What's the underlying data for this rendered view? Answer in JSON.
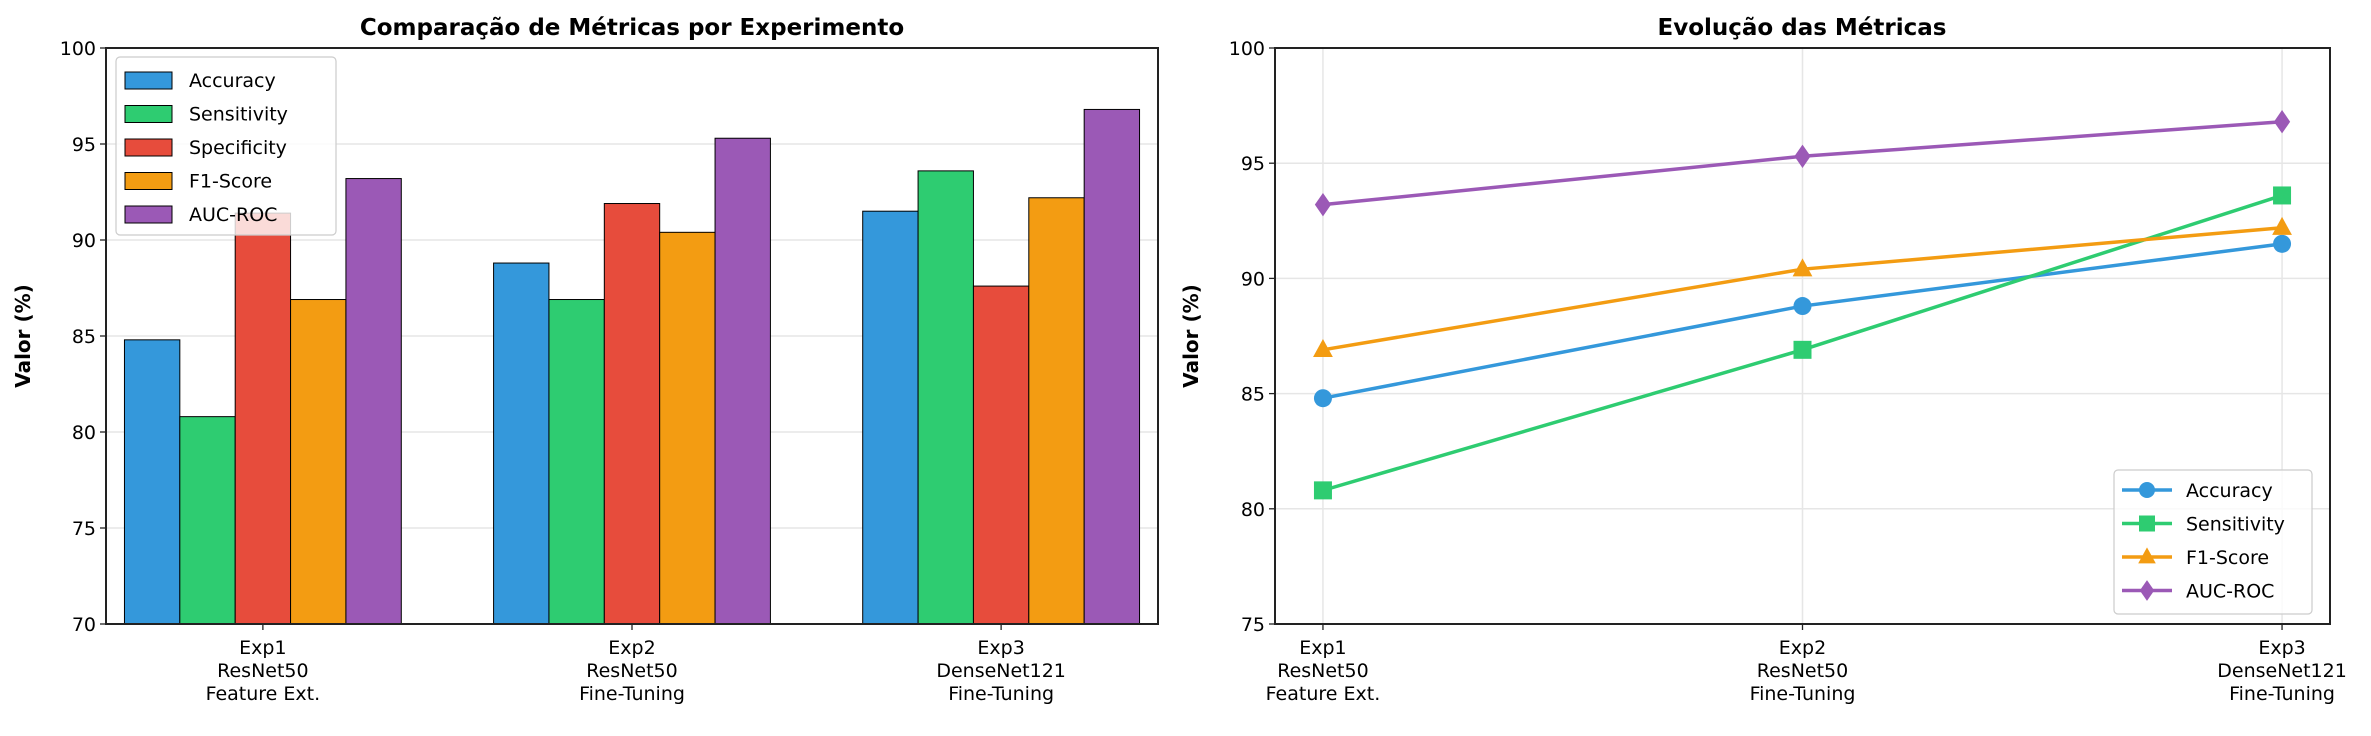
{
  "chart_data": [
    {
      "type": "bar",
      "title": "Comparação de Métricas por Experimento",
      "xlabel": "",
      "ylabel": "Valor (%)",
      "ylim": [
        70,
        100
      ],
      "yticks": [
        "70",
        "75",
        "80",
        "85",
        "90",
        "95",
        "100"
      ],
      "grid": "y",
      "legend_position": "top-left",
      "categories": [
        [
          "Exp1",
          "ResNet50",
          "Feature Ext."
        ],
        [
          "Exp2",
          "ResNet50",
          "Fine-Tuning"
        ],
        [
          "Exp3",
          "DenseNet121",
          "Fine-Tuning"
        ]
      ],
      "series": [
        {
          "name": "Accuracy",
          "color": "#3498db",
          "values": [
            84.8,
            88.8,
            91.5
          ]
        },
        {
          "name": "Sensitivity",
          "color": "#2ecc71",
          "values": [
            80.8,
            86.9,
            93.6
          ]
        },
        {
          "name": "Specificity",
          "color": "#e74c3c",
          "values": [
            91.4,
            91.9,
            87.6
          ]
        },
        {
          "name": "F1-Score",
          "color": "#f39c12",
          "values": [
            86.9,
            90.4,
            92.2
          ]
        },
        {
          "name": "AUC-ROC",
          "color": "#9b59b6",
          "values": [
            93.2,
            95.3,
            96.8
          ]
        }
      ]
    },
    {
      "type": "line",
      "title": "Evolução das Métricas",
      "xlabel": "",
      "ylabel": "Valor (%)",
      "ylim": [
        75,
        100
      ],
      "yticks": [
        "75",
        "80",
        "85",
        "90",
        "95",
        "100"
      ],
      "grid": "both",
      "legend_position": "bottom-right",
      "categories": [
        [
          "Exp1",
          "ResNet50",
          "Feature Ext."
        ],
        [
          "Exp2",
          "ResNet50",
          "Fine-Tuning"
        ],
        [
          "Exp3",
          "DenseNet121",
          "Fine-Tuning"
        ]
      ],
      "series": [
        {
          "name": "Accuracy",
          "color": "#3498db",
          "marker": "circle",
          "values": [
            84.8,
            88.8,
            91.5
          ]
        },
        {
          "name": "Sensitivity",
          "color": "#2ecc71",
          "marker": "square",
          "values": [
            80.8,
            86.9,
            93.6
          ]
        },
        {
          "name": "F1-Score",
          "color": "#f39c12",
          "marker": "triangle",
          "values": [
            86.9,
            90.4,
            92.2
          ]
        },
        {
          "name": "AUC-ROC",
          "color": "#9b59b6",
          "marker": "diamond",
          "values": [
            93.2,
            95.3,
            96.8
          ]
        }
      ]
    }
  ]
}
